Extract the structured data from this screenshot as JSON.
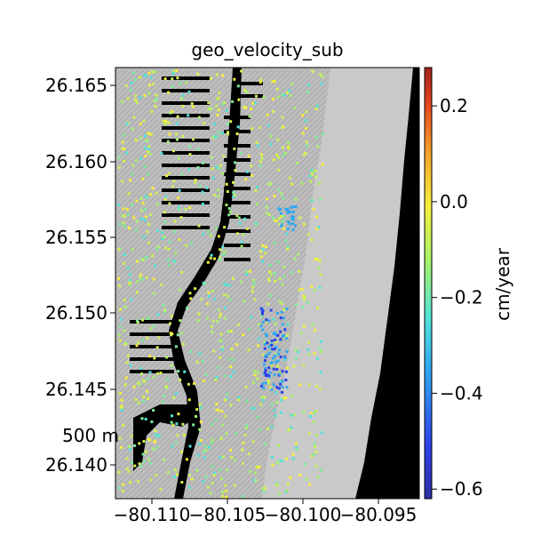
{
  "title": "geo_velocity_sub",
  "scalebar_label": "500 m",
  "colorbar": {
    "label": "cm/year",
    "min": -0.62,
    "max": 0.28,
    "ticks": [
      "0.2",
      "0.0",
      "−0.2",
      "−0.4",
      "−0.6"
    ],
    "tick_values": [
      0.2,
      0.0,
      -0.2,
      -0.4,
      -0.6
    ],
    "colormap": "jet"
  },
  "chart_data": {
    "type": "heatmap",
    "title": "geo_velocity_sub",
    "xlabel": "",
    "ylabel": "",
    "x_ticks": [
      "−80.110",
      "−80.105",
      "−80.100",
      "−80.095"
    ],
    "x_tick_values": [
      -80.11,
      -80.105,
      -80.1,
      -80.095
    ],
    "y_ticks": [
      "26.165",
      "26.160",
      "26.155",
      "26.150",
      "26.145",
      "26.140"
    ],
    "y_tick_values": [
      26.165,
      26.16,
      26.155,
      26.15,
      26.145,
      26.14
    ],
    "xlim": [
      -80.1124,
      -80.0919
    ],
    "ylim": [
      26.1376,
      26.1662
    ],
    "colorbar_range": [
      -0.62,
      0.28
    ],
    "colorbar_label": "cm/year"
  }
}
